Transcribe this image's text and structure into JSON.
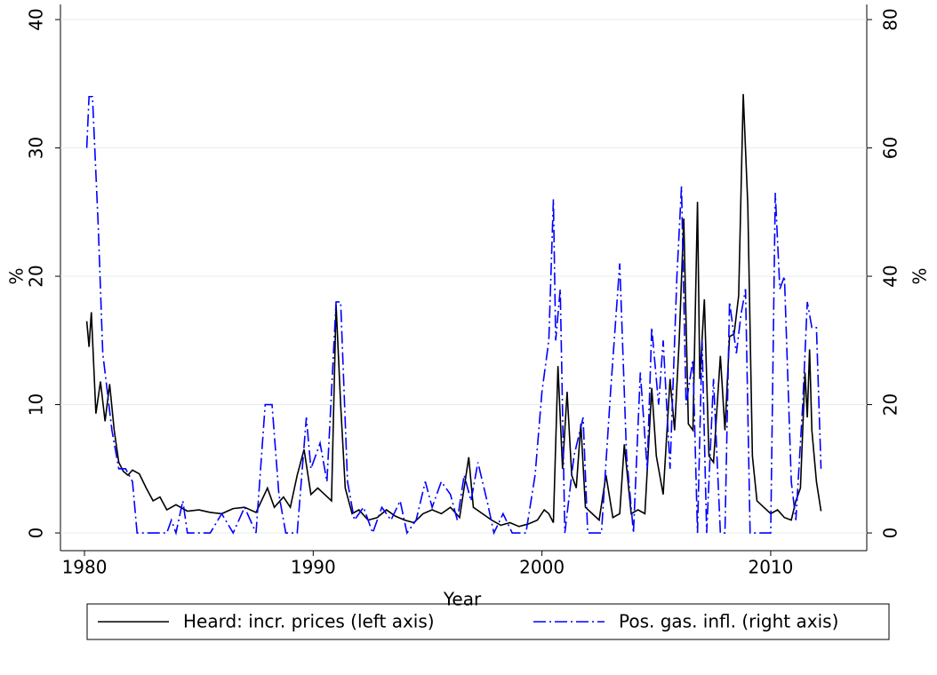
{
  "chart_data": {
    "type": "line",
    "xlabel": "Year",
    "ylabel": "%",
    "y2label": "%",
    "xlim": [
      1978.95,
      2014.2
    ],
    "xticks": [
      1980,
      1990,
      2000,
      2010
    ],
    "ylim": [
      -1.38,
      41.18
    ],
    "yticks": [
      0,
      10,
      20,
      30,
      40
    ],
    "y2lim": [
      -2.76,
      82.36
    ],
    "y2ticks": [
      0,
      20,
      40,
      60,
      80
    ],
    "grid": true,
    "series": [
      {
        "name": "Heard: incr. prices (left axis)",
        "color": "#000000",
        "axis": "y",
        "x": [
          1980.1,
          1980.2,
          1980.3,
          1980.5,
          1980.7,
          1980.9,
          1981.1,
          1981.3,
          1981.5,
          1981.7,
          1981.9,
          1982.1,
          1982.4,
          1982.7,
          1983,
          1983.3,
          1983.6,
          1984,
          1984.5,
          1985,
          1985.5,
          1986,
          1986.5,
          1987,
          1987.5,
          1988,
          1988.3,
          1988.7,
          1989,
          1989.3,
          1989.6,
          1989.9,
          1990.2,
          1990.5,
          1990.8,
          1991.0,
          1991.2,
          1991.4,
          1991.7,
          1992,
          1992.4,
          1992.8,
          1993.2,
          1993.6,
          1994,
          1994.4,
          1994.8,
          1995.2,
          1995.6,
          1996,
          1996.4,
          1996.8,
          1997,
          1997.4,
          1997.8,
          1998.2,
          1998.6,
          1999,
          1999.4,
          1999.8,
          2000.1,
          2000.3,
          2000.5,
          2000.7,
          2000.9,
          2001.1,
          2001.3,
          2001.5,
          2001.7,
          2001.9,
          2002.2,
          2002.5,
          2002.8,
          2003.1,
          2003.4,
          2003.6,
          2003.9,
          2004.2,
          2004.5,
          2004.8,
          2005.0,
          2005.3,
          2005.6,
          2005.8,
          2006.0,
          2006.2,
          2006.4,
          2006.6,
          2006.8,
          2006.9,
          2007.1,
          2007.3,
          2007.5,
          2007.8,
          2008.0,
          2008.2,
          2008.4,
          2008.6,
          2008.8,
          2009.0,
          2009.2,
          2009.4,
          2009.7,
          2010,
          2010.3,
          2010.6,
          2010.9,
          2011.1,
          2011.3,
          2011.5,
          2011.6,
          2011.7,
          2011.8,
          2012.0,
          2012.2
        ],
        "values": [
          16.5,
          14.5,
          17.2,
          9.3,
          11.8,
          8.7,
          11.6,
          8,
          5.5,
          4.8,
          4.5,
          4.9,
          4.6,
          3.5,
          2.5,
          2.8,
          1.8,
          2.2,
          1.7,
          1.8,
          1.6,
          1.5,
          1.9,
          2.0,
          1.6,
          3.5,
          2.0,
          2.8,
          2.0,
          4.5,
          6.5,
          3.0,
          3.5,
          3.0,
          2.5,
          17.8,
          10,
          3.5,
          1.5,
          1.8,
          1.0,
          1.2,
          1.8,
          1.3,
          1.0,
          0.8,
          1.5,
          1.8,
          1.5,
          2.0,
          1.2,
          5.9,
          2.0,
          1.5,
          1.0,
          0.6,
          0.8,
          0.5,
          0.7,
          1.0,
          1.8,
          1.5,
          0.8,
          13.0,
          5.0,
          11,
          4.5,
          3.5,
          8.5,
          2.0,
          1.5,
          1.0,
          4.5,
          1.2,
          1.5,
          6.9,
          1.5,
          1.8,
          1.5,
          11.3,
          6,
          3.0,
          12.0,
          8,
          15,
          24.5,
          8.5,
          8,
          25.8,
          12,
          18.2,
          6,
          5.5,
          13.8,
          8,
          15.3,
          15.5,
          18.5,
          34.2,
          25.5,
          6,
          2.5,
          2.0,
          1.5,
          1.8,
          1.2,
          1.0,
          2.5,
          3.5,
          12.5,
          9,
          14.3,
          8,
          4.0,
          1.7
        ]
      },
      {
        "name": "Pos. gas. infl. (right axis)",
        "color": "#0000ff",
        "axis": "y2",
        "x": [
          1980.1,
          1980.2,
          1980.35,
          1980.6,
          1980.8,
          1981,
          1981.2,
          1981.5,
          1981.8,
          1982.1,
          1982.3,
          1983,
          1983.6,
          1983.8,
          1984,
          1984.3,
          1984.5,
          1985.5,
          1986,
          1986.5,
          1987,
          1987.5,
          1987.9,
          1988.2,
          1988.5,
          1988.8,
          1989.3,
          1989.7,
          1989.9,
          1990.3,
          1990.6,
          1991.0,
          1991.2,
          1991.5,
          1991.8,
          1992.2,
          1992.6,
          1993,
          1993.4,
          1993.8,
          1994.1,
          1994.5,
          1994.9,
          1995.2,
          1995.6,
          1996,
          1996.3,
          1996.6,
          1996.9,
          1997.2,
          1997.6,
          1997.9,
          1998.3,
          1998.7,
          1999.3,
          1999.7,
          2000.0,
          2000.3,
          2000.5,
          2000.6,
          2000.8,
          2001.0,
          2001.4,
          2001.8,
          2002.0,
          2002.6,
          2003.0,
          2003.4,
          2003.7,
          2004.0,
          2004.3,
          2004.6,
          2004.8,
          2005.1,
          2005.3,
          2005.6,
          2005.9,
          2006.1,
          2006.3,
          2006.6,
          2006.8,
          2007.0,
          2007.2,
          2007.5,
          2007.8,
          2008.0,
          2008.2,
          2008.5,
          2008.7,
          2008.9,
          2009.1,
          2009.5,
          2010.0,
          2010.2,
          2010.4,
          2010.6,
          2010.9,
          2011.1,
          2011.4,
          2011.6,
          2011.8,
          2012.0,
          2012.2
        ],
        "values": [
          60,
          68,
          68,
          48,
          28,
          22,
          16,
          10,
          10,
          8,
          0,
          0,
          0,
          2,
          0,
          5,
          0,
          0,
          3,
          0,
          4,
          0,
          20,
          20,
          6,
          0,
          0,
          18,
          10,
          14,
          8,
          36,
          36,
          8,
          2,
          4,
          0,
          4,
          2,
          5,
          0,
          2,
          8,
          4,
          8,
          6,
          2,
          9,
          5,
          11,
          5,
          0,
          3,
          0,
          0,
          9,
          22,
          30,
          52,
          30,
          38,
          0,
          12,
          18,
          0,
          0,
          22,
          42,
          12,
          0,
          25,
          10,
          32,
          20,
          30,
          10,
          40,
          54,
          20,
          27,
          0,
          30,
          0,
          24,
          0,
          0,
          36,
          28,
          34,
          38,
          0,
          0,
          0,
          53,
          38,
          40,
          8,
          2,
          20,
          36,
          32,
          32,
          10
        ]
      }
    ]
  }
}
